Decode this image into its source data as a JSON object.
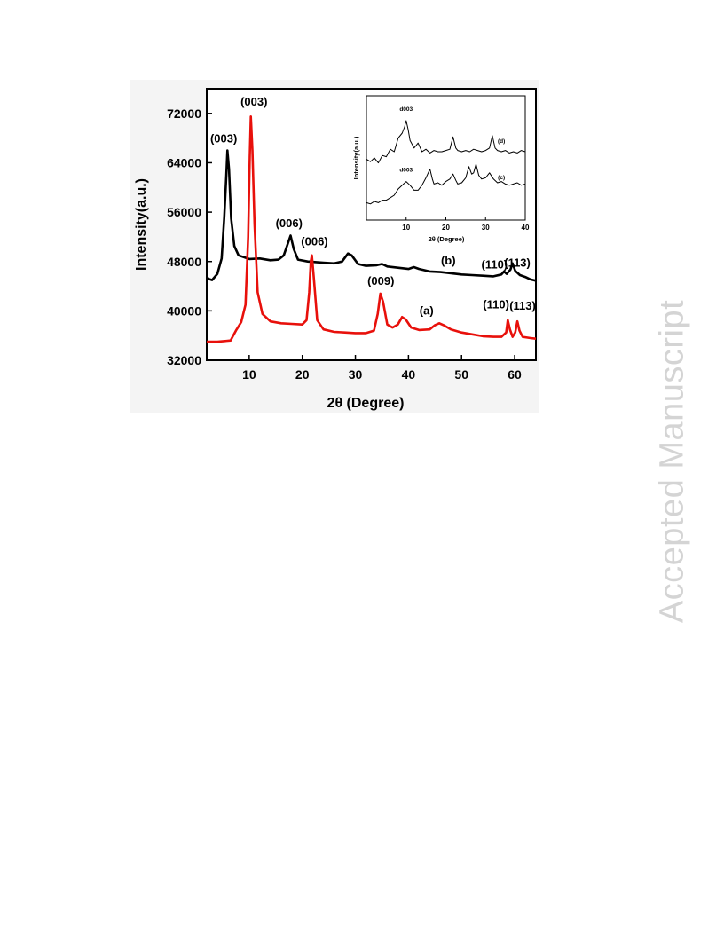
{
  "watermark": "Accepted Manuscript",
  "chart_data": [
    {
      "type": "line",
      "xlabel": "2θ (Degree)",
      "ylabel": "Intensity(a.u.)",
      "xlim": [
        2,
        64
      ],
      "ylim": [
        32000,
        76000
      ],
      "xticks": [
        10,
        20,
        30,
        40,
        50,
        60
      ],
      "yticks": [
        32000,
        40000,
        48000,
        56000,
        64000,
        72000
      ],
      "legend": "none",
      "series": [
        {
          "name": "(b)",
          "color": "#000000",
          "points": [
            [
              2,
              45300
            ],
            [
              3,
              45000
            ],
            [
              4,
              46000
            ],
            [
              4.8,
              48500
            ],
            [
              5.3,
              55000
            ],
            [
              5.7,
              62000
            ],
            [
              5.9,
              66000
            ],
            [
              6.2,
              63000
            ],
            [
              6.6,
              55000
            ],
            [
              7.2,
              50500
            ],
            [
              8,
              49000
            ],
            [
              10,
              48400
            ],
            [
              12,
              48500
            ],
            [
              14,
              48200
            ],
            [
              15.5,
              48300
            ],
            [
              16.5,
              49000
            ],
            [
              17.3,
              51000
            ],
            [
              17.8,
              52200
            ],
            [
              18.4,
              50000
            ],
            [
              19.2,
              48300
            ],
            [
              21,
              48000
            ],
            [
              24,
              47800
            ],
            [
              26,
              47700
            ],
            [
              27.5,
              48000
            ],
            [
              28.6,
              49300
            ],
            [
              29.3,
              49000
            ],
            [
              30.5,
              47600
            ],
            [
              32,
              47300
            ],
            [
              34,
              47400
            ],
            [
              35,
              47600
            ],
            [
              36,
              47200
            ],
            [
              38,
              47000
            ],
            [
              40,
              46800
            ],
            [
              41,
              47100
            ],
            [
              42,
              46800
            ],
            [
              44,
              46400
            ],
            [
              46,
              46300
            ],
            [
              48,
              46100
            ],
            [
              50,
              45900
            ],
            [
              52,
              45800
            ],
            [
              54,
              45700
            ],
            [
              56,
              45600
            ],
            [
              57.5,
              45900
            ],
            [
              58,
              46400
            ],
            [
              58.5,
              46000
            ],
            [
              59.2,
              46700
            ],
            [
              59.6,
              47700
            ],
            [
              60.1,
              46500
            ],
            [
              61,
              45800
            ],
            [
              62,
              45500
            ],
            [
              63,
              45100
            ],
            [
              64,
              44900
            ]
          ]
        },
        {
          "name": "(a)",
          "color": "#e8100b",
          "points": [
            [
              2,
              35000
            ],
            [
              4,
              35000
            ],
            [
              6.5,
              35200
            ],
            [
              7.5,
              36800
            ],
            [
              8.5,
              38200
            ],
            [
              9.3,
              41000
            ],
            [
              9.8,
              52000
            ],
            [
              10.1,
              65000
            ],
            [
              10.3,
              71500
            ],
            [
              10.6,
              66000
            ],
            [
              11,
              54000
            ],
            [
              11.6,
              43000
            ],
            [
              12.5,
              39500
            ],
            [
              14,
              38300
            ],
            [
              16,
              38000
            ],
            [
              18,
              37900
            ],
            [
              20,
              37800
            ],
            [
              20.8,
              38500
            ],
            [
              21.3,
              43000
            ],
            [
              21.6,
              48000
            ],
            [
              21.8,
              49000
            ],
            [
              22.2,
              45000
            ],
            [
              22.8,
              38500
            ],
            [
              24,
              37000
            ],
            [
              26,
              36600
            ],
            [
              28,
              36500
            ],
            [
              30,
              36400
            ],
            [
              32,
              36400
            ],
            [
              33.5,
              36800
            ],
            [
              34.2,
              39500
            ],
            [
              34.7,
              42800
            ],
            [
              35.2,
              41500
            ],
            [
              36,
              37800
            ],
            [
              37,
              37300
            ],
            [
              38,
              37800
            ],
            [
              38.8,
              39000
            ],
            [
              39.5,
              38600
            ],
            [
              40.5,
              37300
            ],
            [
              42,
              36900
            ],
            [
              44,
              37000
            ],
            [
              45,
              37700
            ],
            [
              45.8,
              38000
            ],
            [
              46.6,
              37700
            ],
            [
              48,
              37000
            ],
            [
              50,
              36500
            ],
            [
              52,
              36200
            ],
            [
              54,
              35900
            ],
            [
              56,
              35800
            ],
            [
              57.5,
              35800
            ],
            [
              58.4,
              36500
            ],
            [
              58.7,
              38500
            ],
            [
              59.1,
              37000
            ],
            [
              59.6,
              35800
            ],
            [
              60.1,
              36500
            ],
            [
              60.5,
              38300
            ],
            [
              60.9,
              36800
            ],
            [
              61.5,
              35800
            ],
            [
              63,
              35600
            ],
            [
              64,
              35500
            ]
          ]
        }
      ],
      "annotations": [
        {
          "text": "(003)",
          "x": 5.2,
          "y": 67300
        },
        {
          "text": "(003)",
          "x": 10.9,
          "y": 73300
        },
        {
          "text": "(006)",
          "x": 17.5,
          "y": 53600
        },
        {
          "text": "(006)",
          "x": 22.3,
          "y": 50600
        },
        {
          "text": "(009)",
          "x": 34.8,
          "y": 44200
        },
        {
          "text": "(a)",
          "x": 43.4,
          "y": 39400
        },
        {
          "text": "(b)",
          "x": 47.5,
          "y": 47500
        },
        {
          "text": "(110)",
          "x": 56.2,
          "y": 46900
        },
        {
          "text": "(113)",
          "x": 60.5,
          "y": 47200
        },
        {
          "text": "(110)",
          "x": 56.5,
          "y": 40400
        },
        {
          "text": "(113)",
          "x": 61.5,
          "y": 40200
        }
      ]
    },
    {
      "type": "line",
      "xlabel": "2θ (Degree)",
      "ylabel": "Intensity(a.u.)",
      "xlim": [
        0,
        40
      ],
      "ylim": [
        0,
        100
      ],
      "xticks": [
        10,
        20,
        30,
        40
      ],
      "legend": "none",
      "series": [
        {
          "name": "(d)",
          "color": "#000000",
          "points": [
            [
              0,
              49
            ],
            [
              1,
              47
            ],
            [
              2,
              50
            ],
            [
              3,
              46
            ],
            [
              4,
              52
            ],
            [
              5,
              51
            ],
            [
              6,
              57
            ],
            [
              7,
              55
            ],
            [
              8,
              66
            ],
            [
              9,
              70
            ],
            [
              9.6,
              75
            ],
            [
              10,
              80
            ],
            [
              10.5,
              73
            ],
            [
              11,
              64
            ],
            [
              12,
              58
            ],
            [
              13,
              62
            ],
            [
              14,
              55
            ],
            [
              15,
              57
            ],
            [
              16,
              54
            ],
            [
              17,
              56
            ],
            [
              18,
              55
            ],
            [
              19,
              55
            ],
            [
              20,
              56
            ],
            [
              21,
              57
            ],
            [
              21.8,
              67
            ],
            [
              22.5,
              58
            ],
            [
              23,
              56
            ],
            [
              24,
              55
            ],
            [
              25,
              56
            ],
            [
              26,
              55
            ],
            [
              27,
              57
            ],
            [
              28,
              56
            ],
            [
              29,
              55
            ],
            [
              30,
              56
            ],
            [
              31,
              58
            ],
            [
              31.7,
              68
            ],
            [
              32.4,
              58
            ],
            [
              33,
              56
            ],
            [
              34,
              55
            ],
            [
              35,
              56
            ],
            [
              36,
              54
            ],
            [
              37,
              55
            ],
            [
              38,
              54
            ],
            [
              39,
              56
            ],
            [
              40,
              55
            ]
          ]
        },
        {
          "name": "(c)",
          "color": "#000000",
          "points": [
            [
              0,
              14
            ],
            [
              1,
              13
            ],
            [
              2,
              15
            ],
            [
              3,
              14
            ],
            [
              4,
              16
            ],
            [
              5,
              16
            ],
            [
              6,
              18
            ],
            [
              7,
              20
            ],
            [
              8,
              25
            ],
            [
              9,
              28
            ],
            [
              10,
              31
            ],
            [
              11,
              28
            ],
            [
              12,
              24
            ],
            [
              13,
              24
            ],
            [
              14,
              28
            ],
            [
              15,
              34
            ],
            [
              16,
              41
            ],
            [
              16.6,
              33
            ],
            [
              17,
              29
            ],
            [
              18,
              30
            ],
            [
              19,
              28
            ],
            [
              20,
              31
            ],
            [
              21,
              33
            ],
            [
              21.8,
              37
            ],
            [
              22.5,
              32
            ],
            [
              23,
              29
            ],
            [
              24,
              30
            ],
            [
              25,
              34
            ],
            [
              25.8,
              43
            ],
            [
              26.5,
              37
            ],
            [
              27,
              38
            ],
            [
              27.6,
              45
            ],
            [
              28.3,
              36
            ],
            [
              29,
              33
            ],
            [
              30,
              34
            ],
            [
              31,
              38
            ],
            [
              32,
              33
            ],
            [
              33,
              30
            ],
            [
              34,
              31
            ],
            [
              35,
              29
            ],
            [
              36,
              28
            ],
            [
              37,
              29
            ],
            [
              38,
              30
            ],
            [
              39,
              28
            ],
            [
              40,
              29
            ]
          ]
        }
      ],
      "annotations": [
        {
          "text": "d003",
          "x": 10.0,
          "y": 88
        },
        {
          "text": "d003",
          "x": 10.0,
          "y": 39
        },
        {
          "text": "(d)",
          "x": 34,
          "y": 62
        },
        {
          "text": "(c)",
          "x": 34,
          "y": 33
        }
      ]
    }
  ]
}
